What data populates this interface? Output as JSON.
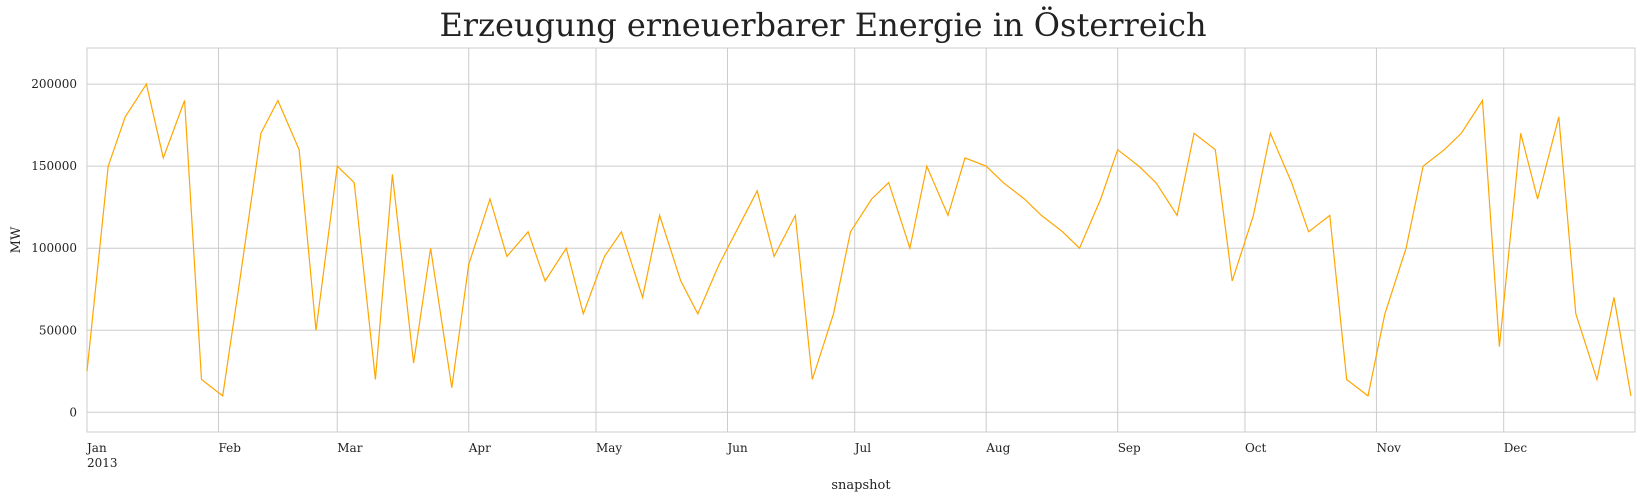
{
  "chart_data": {
    "type": "line",
    "title": "Erzeugung erneuerbarer Energie in Österreich",
    "xlabel": "snapshot",
    "ylabel": "MW",
    "x_range": [
      "2013-01-01",
      "2013-12-31"
    ],
    "ylim": [
      -12000,
      222000
    ],
    "y_ticks": [
      0,
      50000,
      100000,
      150000,
      200000
    ],
    "x_ticks": [
      {
        "date": "2013-01-01",
        "label": "Jan",
        "sublabel": "2013"
      },
      {
        "date": "2013-02-01",
        "label": "Feb"
      },
      {
        "date": "2013-03-01",
        "label": "Mar"
      },
      {
        "date": "2013-04-01",
        "label": "Apr"
      },
      {
        "date": "2013-05-01",
        "label": "May"
      },
      {
        "date": "2013-06-01",
        "label": "Jun"
      },
      {
        "date": "2013-07-01",
        "label": "Jul"
      },
      {
        "date": "2013-08-01",
        "label": "Aug"
      },
      {
        "date": "2013-09-01",
        "label": "Sep"
      },
      {
        "date": "2013-10-01",
        "label": "Oct"
      },
      {
        "date": "2013-11-01",
        "label": "Nov"
      },
      {
        "date": "2013-12-01",
        "label": "Dec"
      }
    ],
    "grid": true,
    "series": [
      {
        "color": "#FFA500",
        "x": [
          "2013-01-01",
          "2013-01-06",
          "2013-01-10",
          "2013-01-15",
          "2013-01-19",
          "2013-01-24",
          "2013-01-28",
          "2013-02-02",
          "2013-02-06",
          "2013-02-11",
          "2013-02-15",
          "2013-02-20",
          "2013-02-24",
          "2013-03-01",
          "2013-03-05",
          "2013-03-10",
          "2013-03-14",
          "2013-03-19",
          "2013-03-23",
          "2013-03-28",
          "2013-04-01",
          "2013-04-06",
          "2013-04-10",
          "2013-04-15",
          "2013-04-19",
          "2013-04-24",
          "2013-04-28",
          "2013-05-03",
          "2013-05-07",
          "2013-05-12",
          "2013-05-16",
          "2013-05-21",
          "2013-05-25",
          "2013-05-30",
          "2013-06-03",
          "2013-06-08",
          "2013-06-12",
          "2013-06-17",
          "2013-06-21",
          "2013-06-26",
          "2013-06-30",
          "2013-07-05",
          "2013-07-09",
          "2013-07-14",
          "2013-07-18",
          "2013-07-23",
          "2013-07-27",
          "2013-08-01",
          "2013-08-05",
          "2013-08-10",
          "2013-08-14",
          "2013-08-19",
          "2013-08-23",
          "2013-08-28",
          "2013-09-01",
          "2013-09-06",
          "2013-09-10",
          "2013-09-15",
          "2013-09-19",
          "2013-09-24",
          "2013-09-28",
          "2013-10-03",
          "2013-10-07",
          "2013-10-12",
          "2013-10-16",
          "2013-10-21",
          "2013-10-25",
          "2013-10-30",
          "2013-11-03",
          "2013-11-08",
          "2013-11-12",
          "2013-11-17",
          "2013-11-21",
          "2013-11-26",
          "2013-11-30",
          "2013-12-05",
          "2013-12-09",
          "2013-12-14",
          "2013-12-18",
          "2013-12-23",
          "2013-12-27",
          "2013-12-31"
        ],
        "y": [
          25000,
          150000,
          180000,
          200000,
          155000,
          190000,
          20000,
          10000,
          80000,
          170000,
          190000,
          160000,
          50000,
          150000,
          140000,
          20000,
          145000,
          30000,
          100000,
          15000,
          90000,
          130000,
          95000,
          110000,
          80000,
          100000,
          60000,
          95000,
          110000,
          70000,
          120000,
          80000,
          60000,
          90000,
          110000,
          135000,
          95000,
          120000,
          20000,
          60000,
          110000,
          130000,
          140000,
          100000,
          150000,
          120000,
          155000,
          150000,
          140000,
          130000,
          120000,
          110000,
          100000,
          130000,
          160000,
          150000,
          140000,
          120000,
          170000,
          160000,
          80000,
          120000,
          170000,
          140000,
          110000,
          120000,
          20000,
          10000,
          60000,
          100000,
          150000,
          160000,
          170000,
          190000,
          40000,
          170000,
          130000,
          180000,
          60000,
          20000,
          70000,
          10000
        ]
      }
    ]
  }
}
